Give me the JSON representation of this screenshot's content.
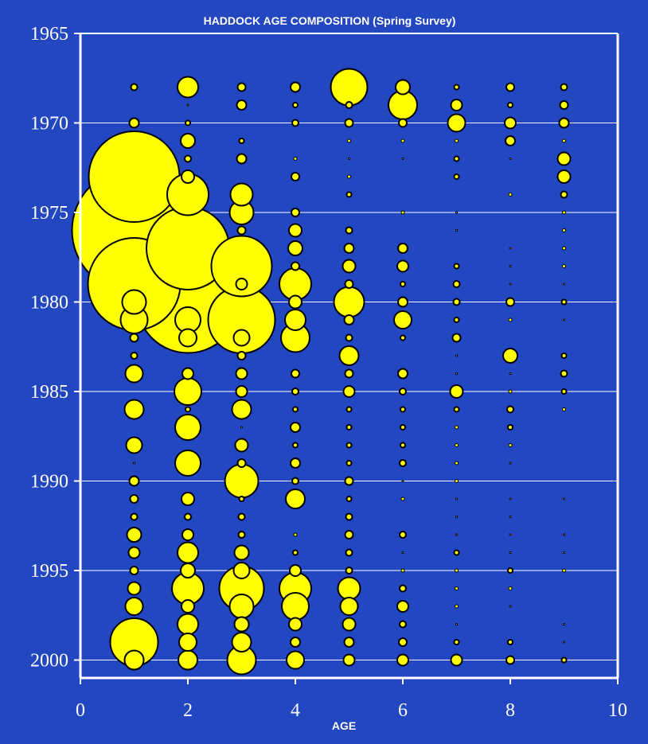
{
  "chart_data": {
    "type": "scatter",
    "title": "HADDOCK AGE COMPOSITION (Spring Survey)",
    "xlabel": "AGE",
    "ylabel": "",
    "xlim": [
      0,
      10
    ],
    "ylim": [
      2001,
      1965
    ],
    "x_ticks": [
      "0",
      "2",
      "4",
      "6",
      "8",
      "10"
    ],
    "y_ticks": [
      "1965",
      "1970",
      "1975",
      "1980",
      "1985",
      "1990",
      "1995",
      "2000"
    ],
    "grid": "horizontal",
    "colors": {
      "background": "#2347c0",
      "bubble_fill": "#ffff00",
      "bubble_stroke": "#000000",
      "axis": "#ffffff",
      "grid": "#ffffff"
    },
    "bubble_encoding": "radius",
    "points": [
      {
        "age": 1,
        "year": 1968,
        "r": 4
      },
      {
        "age": 1,
        "year": 1970,
        "r": 6
      },
      {
        "age": 1,
        "year": 1973,
        "r": 57
      },
      {
        "age": 1,
        "year": 1976,
        "r": 78
      },
      {
        "age": 1,
        "year": 1979,
        "r": 58
      },
      {
        "age": 1,
        "year": 1980,
        "r": 15
      },
      {
        "age": 1,
        "year": 1981,
        "r": 17
      },
      {
        "age": 1,
        "year": 1982,
        "r": 5
      },
      {
        "age": 1,
        "year": 1983,
        "r": 4
      },
      {
        "age": 1,
        "year": 1984,
        "r": 11
      },
      {
        "age": 1,
        "year": 1986,
        "r": 12
      },
      {
        "age": 1,
        "year": 1988,
        "r": 10
      },
      {
        "age": 1,
        "year": 1989,
        "r": 1
      },
      {
        "age": 1,
        "year": 1990,
        "r": 6
      },
      {
        "age": 1,
        "year": 1991,
        "r": 5
      },
      {
        "age": 1,
        "year": 1992,
        "r": 4
      },
      {
        "age": 1,
        "year": 1993,
        "r": 9
      },
      {
        "age": 1,
        "year": 1994,
        "r": 7
      },
      {
        "age": 1,
        "year": 1995,
        "r": 5
      },
      {
        "age": 1,
        "year": 1996,
        "r": 8
      },
      {
        "age": 1,
        "year": 1997,
        "r": 11
      },
      {
        "age": 1,
        "year": 1999,
        "r": 30
      },
      {
        "age": 1,
        "year": 2000,
        "r": 12
      },
      {
        "age": 2,
        "year": 1968,
        "r": 13
      },
      {
        "age": 2,
        "year": 1969,
        "r": 1
      },
      {
        "age": 2,
        "year": 1970,
        "r": 3
      },
      {
        "age": 2,
        "year": 1971,
        "r": 9
      },
      {
        "age": 2,
        "year": 1972,
        "r": 4
      },
      {
        "age": 2,
        "year": 1973,
        "r": 8
      },
      {
        "age": 2,
        "year": 1974,
        "r": 26
      },
      {
        "age": 2,
        "year": 1977,
        "r": 52
      },
      {
        "age": 2,
        "year": 1980,
        "r": 64
      },
      {
        "age": 2,
        "year": 1981,
        "r": 16
      },
      {
        "age": 2,
        "year": 1982,
        "r": 11
      },
      {
        "age": 2,
        "year": 1984,
        "r": 7
      },
      {
        "age": 2,
        "year": 1985,
        "r": 17
      },
      {
        "age": 2,
        "year": 1986,
        "r": 3
      },
      {
        "age": 2,
        "year": 1987,
        "r": 16
      },
      {
        "age": 2,
        "year": 1989,
        "r": 16
      },
      {
        "age": 2,
        "year": 1991,
        "r": 8
      },
      {
        "age": 2,
        "year": 1992,
        "r": 4
      },
      {
        "age": 2,
        "year": 1993,
        "r": 7
      },
      {
        "age": 2,
        "year": 1994,
        "r": 13
      },
      {
        "age": 2,
        "year": 1995,
        "r": 9
      },
      {
        "age": 2,
        "year": 1996,
        "r": 20
      },
      {
        "age": 2,
        "year": 1997,
        "r": 8
      },
      {
        "age": 2,
        "year": 1998,
        "r": 13
      },
      {
        "age": 2,
        "year": 1999,
        "r": 11
      },
      {
        "age": 2,
        "year": 2000,
        "r": 12
      },
      {
        "age": 3,
        "year": 1968,
        "r": 5
      },
      {
        "age": 3,
        "year": 1969,
        "r": 6
      },
      {
        "age": 3,
        "year": 1971,
        "r": 3
      },
      {
        "age": 3,
        "year": 1972,
        "r": 6
      },
      {
        "age": 3,
        "year": 1974,
        "r": 14
      },
      {
        "age": 3,
        "year": 1975,
        "r": 15
      },
      {
        "age": 3,
        "year": 1976,
        "r": 5
      },
      {
        "age": 3,
        "year": 1978,
        "r": 38
      },
      {
        "age": 3,
        "year": 1979,
        "r": 7
      },
      {
        "age": 3,
        "year": 1981,
        "r": 42
      },
      {
        "age": 3,
        "year": 1982,
        "r": 10
      },
      {
        "age": 3,
        "year": 1983,
        "r": 5
      },
      {
        "age": 3,
        "year": 1984,
        "r": 7
      },
      {
        "age": 3,
        "year": 1985,
        "r": 7
      },
      {
        "age": 3,
        "year": 1986,
        "r": 12
      },
      {
        "age": 3,
        "year": 1987,
        "r": 1
      },
      {
        "age": 3,
        "year": 1988,
        "r": 8
      },
      {
        "age": 3,
        "year": 1989,
        "r": 5
      },
      {
        "age": 3,
        "year": 1990,
        "r": 21
      },
      {
        "age": 3,
        "year": 1991,
        "r": 3
      },
      {
        "age": 3,
        "year": 1992,
        "r": 4
      },
      {
        "age": 3,
        "year": 1993,
        "r": 4
      },
      {
        "age": 3,
        "year": 1994,
        "r": 9
      },
      {
        "age": 3,
        "year": 1995,
        "r": 10
      },
      {
        "age": 3,
        "year": 1996,
        "r": 28
      },
      {
        "age": 3,
        "year": 1997,
        "r": 15
      },
      {
        "age": 3,
        "year": 1998,
        "r": 9
      },
      {
        "age": 3,
        "year": 1999,
        "r": 12
      },
      {
        "age": 3,
        "year": 2000,
        "r": 18
      },
      {
        "age": 4,
        "year": 1968,
        "r": 6
      },
      {
        "age": 4,
        "year": 1969,
        "r": 3
      },
      {
        "age": 4,
        "year": 1970,
        "r": 4
      },
      {
        "age": 4,
        "year": 1972,
        "r": 2
      },
      {
        "age": 4,
        "year": 1973,
        "r": 5
      },
      {
        "age": 4,
        "year": 1975,
        "r": 5
      },
      {
        "age": 4,
        "year": 1976,
        "r": 8
      },
      {
        "age": 4,
        "year": 1977,
        "r": 9
      },
      {
        "age": 4,
        "year": 1978,
        "r": 5
      },
      {
        "age": 4,
        "year": 1979,
        "r": 20
      },
      {
        "age": 4,
        "year": 1980,
        "r": 8
      },
      {
        "age": 4,
        "year": 1981,
        "r": 13
      },
      {
        "age": 4,
        "year": 1982,
        "r": 18
      },
      {
        "age": 4,
        "year": 1984,
        "r": 5
      },
      {
        "age": 4,
        "year": 1985,
        "r": 4
      },
      {
        "age": 4,
        "year": 1986,
        "r": 3
      },
      {
        "age": 4,
        "year": 1987,
        "r": 6
      },
      {
        "age": 4,
        "year": 1988,
        "r": 3
      },
      {
        "age": 4,
        "year": 1989,
        "r": 6
      },
      {
        "age": 4,
        "year": 1990,
        "r": 4
      },
      {
        "age": 4,
        "year": 1991,
        "r": 12
      },
      {
        "age": 4,
        "year": 1993,
        "r": 2
      },
      {
        "age": 4,
        "year": 1994,
        "r": 3
      },
      {
        "age": 4,
        "year": 1995,
        "r": 7
      },
      {
        "age": 4,
        "year": 1996,
        "r": 20
      },
      {
        "age": 4,
        "year": 1997,
        "r": 17
      },
      {
        "age": 4,
        "year": 1998,
        "r": 8
      },
      {
        "age": 4,
        "year": 1999,
        "r": 6
      },
      {
        "age": 4,
        "year": 2000,
        "r": 11
      },
      {
        "age": 5,
        "year": 1968,
        "r": 23
      },
      {
        "age": 5,
        "year": 1969,
        "r": 4
      },
      {
        "age": 5,
        "year": 1970,
        "r": 5
      },
      {
        "age": 5,
        "year": 1971,
        "r": 2
      },
      {
        "age": 5,
        "year": 1972,
        "r": 1
      },
      {
        "age": 5,
        "year": 1973,
        "r": 2
      },
      {
        "age": 5,
        "year": 1974,
        "r": 3
      },
      {
        "age": 5,
        "year": 1976,
        "r": 4
      },
      {
        "age": 5,
        "year": 1977,
        "r": 6
      },
      {
        "age": 5,
        "year": 1978,
        "r": 8
      },
      {
        "age": 5,
        "year": 1979,
        "r": 5
      },
      {
        "age": 5,
        "year": 1980,
        "r": 19
      },
      {
        "age": 5,
        "year": 1981,
        "r": 6
      },
      {
        "age": 5,
        "year": 1982,
        "r": 4
      },
      {
        "age": 5,
        "year": 1983,
        "r": 12
      },
      {
        "age": 5,
        "year": 1984,
        "r": 5
      },
      {
        "age": 5,
        "year": 1985,
        "r": 7
      },
      {
        "age": 5,
        "year": 1986,
        "r": 3
      },
      {
        "age": 5,
        "year": 1987,
        "r": 3
      },
      {
        "age": 5,
        "year": 1988,
        "r": 3
      },
      {
        "age": 5,
        "year": 1989,
        "r": 3
      },
      {
        "age": 5,
        "year": 1990,
        "r": 5
      },
      {
        "age": 5,
        "year": 1991,
        "r": 3
      },
      {
        "age": 5,
        "year": 1992,
        "r": 4
      },
      {
        "age": 5,
        "year": 1993,
        "r": 5
      },
      {
        "age": 5,
        "year": 1994,
        "r": 4
      },
      {
        "age": 5,
        "year": 1995,
        "r": 4
      },
      {
        "age": 5,
        "year": 1996,
        "r": 14
      },
      {
        "age": 5,
        "year": 1997,
        "r": 11
      },
      {
        "age": 5,
        "year": 1998,
        "r": 8
      },
      {
        "age": 5,
        "year": 1999,
        "r": 6
      },
      {
        "age": 5,
        "year": 2000,
        "r": 7
      },
      {
        "age": 6,
        "year": 1968,
        "r": 9
      },
      {
        "age": 6,
        "year": 1969,
        "r": 18
      },
      {
        "age": 6,
        "year": 1970,
        "r": 5
      },
      {
        "age": 6,
        "year": 1971,
        "r": 2
      },
      {
        "age": 6,
        "year": 1972,
        "r": 1
      },
      {
        "age": 6,
        "year": 1975,
        "r": 2
      },
      {
        "age": 6,
        "year": 1977,
        "r": 6
      },
      {
        "age": 6,
        "year": 1978,
        "r": 7
      },
      {
        "age": 6,
        "year": 1979,
        "r": 3
      },
      {
        "age": 6,
        "year": 1980,
        "r": 6
      },
      {
        "age": 6,
        "year": 1981,
        "r": 11
      },
      {
        "age": 6,
        "year": 1982,
        "r": 3
      },
      {
        "age": 6,
        "year": 1984,
        "r": 6
      },
      {
        "age": 6,
        "year": 1985,
        "r": 4
      },
      {
        "age": 6,
        "year": 1986,
        "r": 3
      },
      {
        "age": 6,
        "year": 1987,
        "r": 3
      },
      {
        "age": 6,
        "year": 1988,
        "r": 3
      },
      {
        "age": 6,
        "year": 1989,
        "r": 4
      },
      {
        "age": 6,
        "year": 1990,
        "r": 1
      },
      {
        "age": 6,
        "year": 1991,
        "r": 2
      },
      {
        "age": 6,
        "year": 1993,
        "r": 4
      },
      {
        "age": 6,
        "year": 1994,
        "r": 1
      },
      {
        "age": 6,
        "year": 1995,
        "r": 2
      },
      {
        "age": 6,
        "year": 1996,
        "r": 4
      },
      {
        "age": 6,
        "year": 1997,
        "r": 7
      },
      {
        "age": 6,
        "year": 1998,
        "r": 4
      },
      {
        "age": 6,
        "year": 1999,
        "r": 5
      },
      {
        "age": 6,
        "year": 2000,
        "r": 7
      },
      {
        "age": 7,
        "year": 1968,
        "r": 3
      },
      {
        "age": 7,
        "year": 1969,
        "r": 7
      },
      {
        "age": 7,
        "year": 1970,
        "r": 11
      },
      {
        "age": 7,
        "year": 1971,
        "r": 2
      },
      {
        "age": 7,
        "year": 1972,
        "r": 3
      },
      {
        "age": 7,
        "year": 1973,
        "r": 3
      },
      {
        "age": 7,
        "year": 1975,
        "r": 1
      },
      {
        "age": 7,
        "year": 1976,
        "r": 1
      },
      {
        "age": 7,
        "year": 1978,
        "r": 3
      },
      {
        "age": 7,
        "year": 1979,
        "r": 4
      },
      {
        "age": 7,
        "year": 1980,
        "r": 4
      },
      {
        "age": 7,
        "year": 1981,
        "r": 3
      },
      {
        "age": 7,
        "year": 1982,
        "r": 5
      },
      {
        "age": 7,
        "year": 1983,
        "r": 1
      },
      {
        "age": 7,
        "year": 1984,
        "r": 1
      },
      {
        "age": 7,
        "year": 1985,
        "r": 8
      },
      {
        "age": 7,
        "year": 1986,
        "r": 3
      },
      {
        "age": 7,
        "year": 1987,
        "r": 2
      },
      {
        "age": 7,
        "year": 1988,
        "r": 2
      },
      {
        "age": 7,
        "year": 1989,
        "r": 2
      },
      {
        "age": 7,
        "year": 1990,
        "r": 2
      },
      {
        "age": 7,
        "year": 1991,
        "r": 1
      },
      {
        "age": 7,
        "year": 1992,
        "r": 1
      },
      {
        "age": 7,
        "year": 1993,
        "r": 1
      },
      {
        "age": 7,
        "year": 1994,
        "r": 3
      },
      {
        "age": 7,
        "year": 1995,
        "r": 2
      },
      {
        "age": 7,
        "year": 1996,
        "r": 2
      },
      {
        "age": 7,
        "year": 1997,
        "r": 2
      },
      {
        "age": 7,
        "year": 1998,
        "r": 1
      },
      {
        "age": 7,
        "year": 1999,
        "r": 3
      },
      {
        "age": 7,
        "year": 2000,
        "r": 7
      },
      {
        "age": 8,
        "year": 1968,
        "r": 5
      },
      {
        "age": 8,
        "year": 1969,
        "r": 3
      },
      {
        "age": 8,
        "year": 1970,
        "r": 7
      },
      {
        "age": 8,
        "year": 1971,
        "r": 6
      },
      {
        "age": 8,
        "year": 1972,
        "r": 1
      },
      {
        "age": 8,
        "year": 1974,
        "r": 2
      },
      {
        "age": 8,
        "year": 1977,
        "r": 1
      },
      {
        "age": 8,
        "year": 1978,
        "r": 1
      },
      {
        "age": 8,
        "year": 1979,
        "r": 1
      },
      {
        "age": 8,
        "year": 1980,
        "r": 5
      },
      {
        "age": 8,
        "year": 1981,
        "r": 2
      },
      {
        "age": 8,
        "year": 1983,
        "r": 9
      },
      {
        "age": 8,
        "year": 1984,
        "r": 1
      },
      {
        "age": 8,
        "year": 1985,
        "r": 2
      },
      {
        "age": 8,
        "year": 1986,
        "r": 4
      },
      {
        "age": 8,
        "year": 1987,
        "r": 3
      },
      {
        "age": 8,
        "year": 1988,
        "r": 2
      },
      {
        "age": 8,
        "year": 1989,
        "r": 1
      },
      {
        "age": 8,
        "year": 1991,
        "r": 1
      },
      {
        "age": 8,
        "year": 1992,
        "r": 1
      },
      {
        "age": 8,
        "year": 1993,
        "r": 1
      },
      {
        "age": 8,
        "year": 1994,
        "r": 1
      },
      {
        "age": 8,
        "year": 1995,
        "r": 3
      },
      {
        "age": 8,
        "year": 1996,
        "r": 2
      },
      {
        "age": 8,
        "year": 1997,
        "r": 1
      },
      {
        "age": 8,
        "year": 1999,
        "r": 3
      },
      {
        "age": 8,
        "year": 2000,
        "r": 5
      },
      {
        "age": 9,
        "year": 1968,
        "r": 4
      },
      {
        "age": 9,
        "year": 1969,
        "r": 5
      },
      {
        "age": 9,
        "year": 1970,
        "r": 6
      },
      {
        "age": 9,
        "year": 1971,
        "r": 2
      },
      {
        "age": 9,
        "year": 1972,
        "r": 8
      },
      {
        "age": 9,
        "year": 1973,
        "r": 8
      },
      {
        "age": 9,
        "year": 1974,
        "r": 4
      },
      {
        "age": 9,
        "year": 1975,
        "r": 2
      },
      {
        "age": 9,
        "year": 1976,
        "r": 2
      },
      {
        "age": 9,
        "year": 1977,
        "r": 2
      },
      {
        "age": 9,
        "year": 1978,
        "r": 2
      },
      {
        "age": 9,
        "year": 1979,
        "r": 1
      },
      {
        "age": 9,
        "year": 1980,
        "r": 3
      },
      {
        "age": 9,
        "year": 1981,
        "r": 1
      },
      {
        "age": 9,
        "year": 1983,
        "r": 3
      },
      {
        "age": 9,
        "year": 1984,
        "r": 4
      },
      {
        "age": 9,
        "year": 1985,
        "r": 3
      },
      {
        "age": 9,
        "year": 1986,
        "r": 2
      },
      {
        "age": 9,
        "year": 1991,
        "r": 1
      },
      {
        "age": 9,
        "year": 1993,
        "r": 1
      },
      {
        "age": 9,
        "year": 1994,
        "r": 1
      },
      {
        "age": 9,
        "year": 1995,
        "r": 2
      },
      {
        "age": 9,
        "year": 1998,
        "r": 1
      },
      {
        "age": 9,
        "year": 1999,
        "r": 1
      },
      {
        "age": 9,
        "year": 2000,
        "r": 3
      }
    ]
  }
}
